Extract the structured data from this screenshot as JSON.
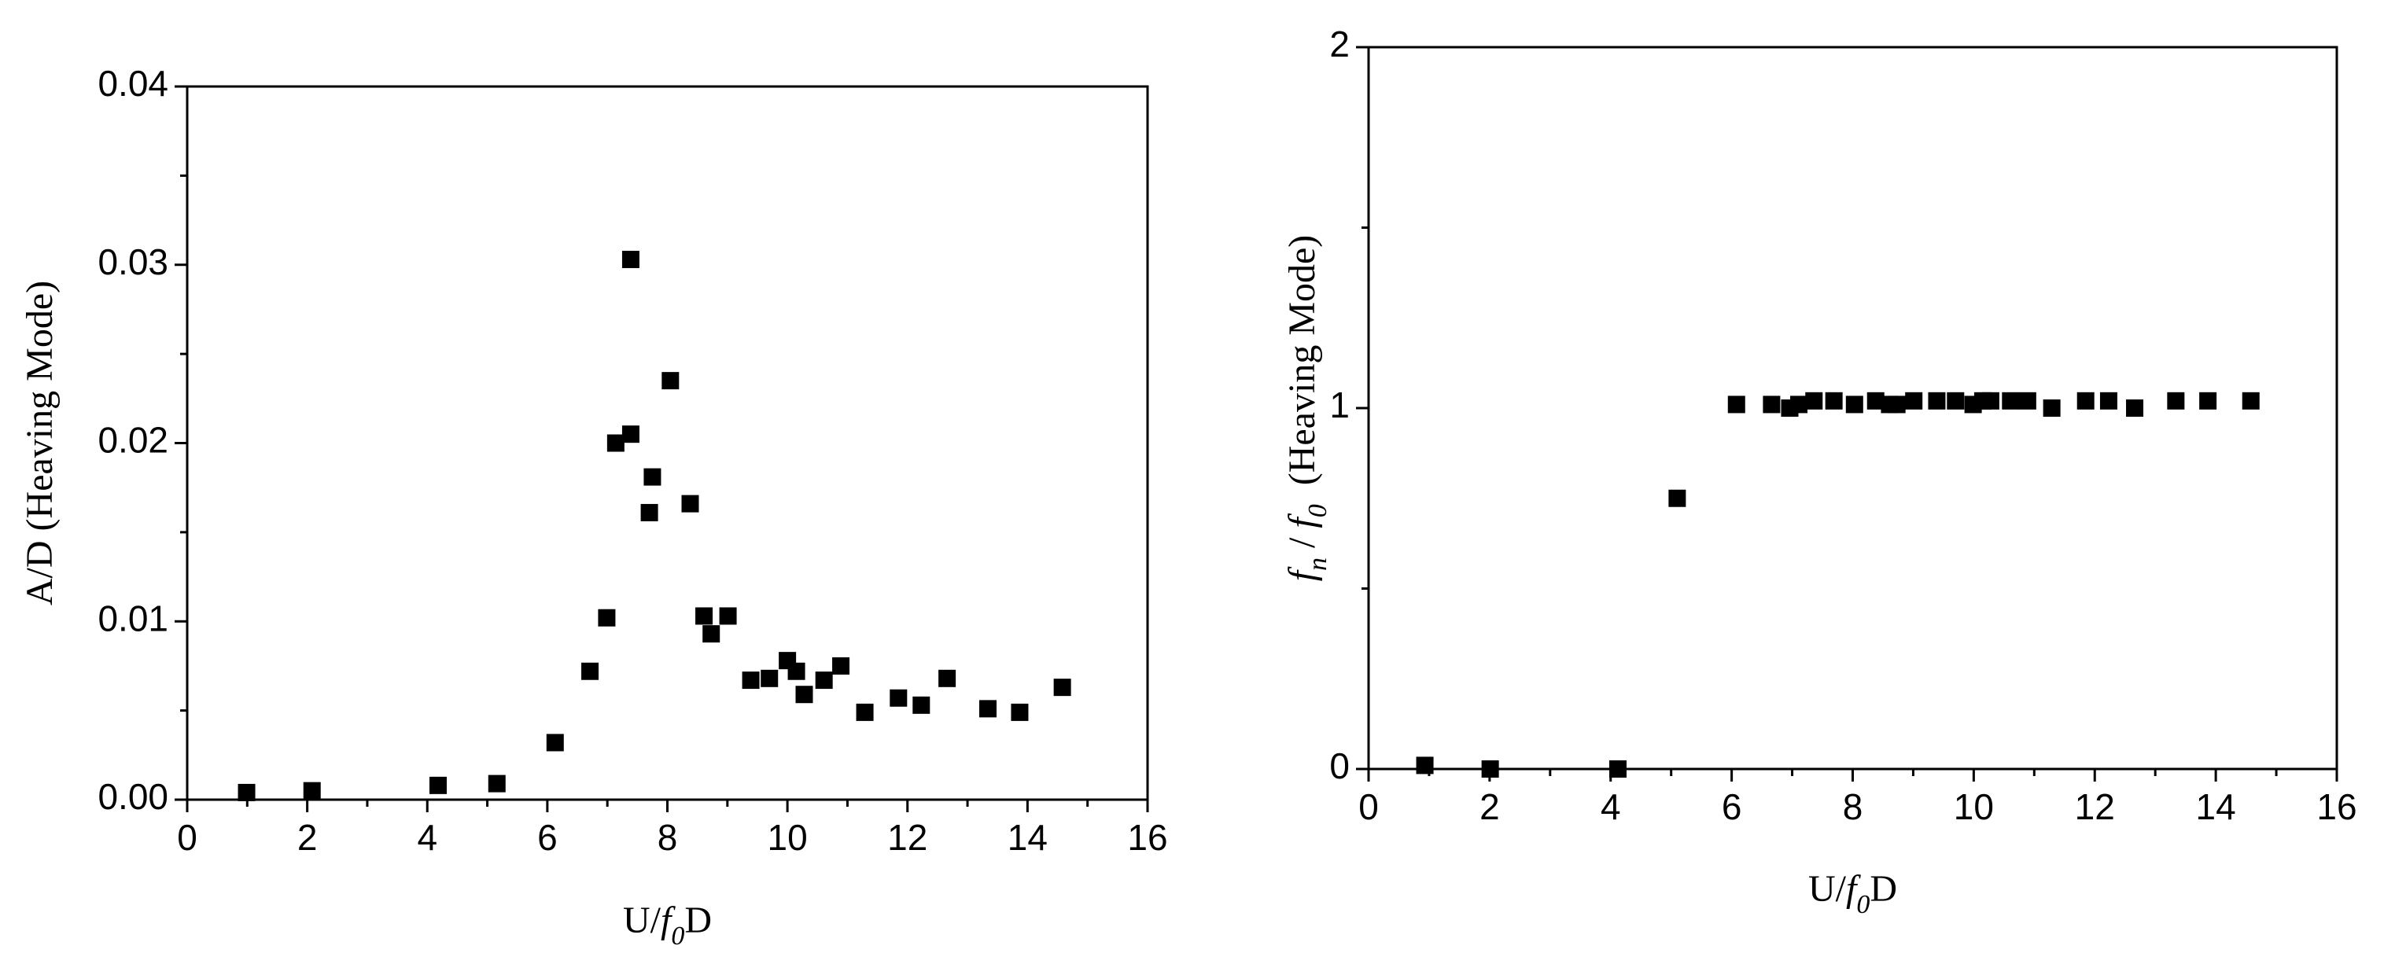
{
  "chart_data": [
    {
      "type": "scatter",
      "color": "#000000",
      "xlabel": [
        {
          "text": "U/",
          "style": "normal"
        },
        {
          "text": "f",
          "style": "italic"
        },
        {
          "text": "0",
          "style": "italic-sub"
        },
        {
          "text": "D",
          "style": "normal"
        }
      ],
      "ylabel": [
        {
          "text": "A/D (Heaving Mode)",
          "style": "normal"
        }
      ],
      "x": [
        0.99,
        2.08,
        4.18,
        5.16,
        6.13,
        6.71,
        6.99,
        7.14,
        7.39,
        7.39,
        7.7,
        7.75,
        8.05,
        8.38,
        8.61,
        8.73,
        9.01,
        9.39,
        9.7,
        10.0,
        10.15,
        10.28,
        10.61,
        10.89,
        11.29,
        11.85,
        12.23,
        12.66,
        13.34,
        13.87,
        14.58
      ],
      "values": [
        0.0004,
        0.0005,
        0.0008,
        0.0009,
        0.0032,
        0.0072,
        0.0102,
        0.02,
        0.0205,
        0.0303,
        0.0161,
        0.0181,
        0.0235,
        0.0166,
        0.0103,
        0.0093,
        0.0103,
        0.0067,
        0.0068,
        0.0078,
        0.0072,
        0.0059,
        0.0067,
        0.0075,
        0.0049,
        0.0057,
        0.0053,
        0.0068,
        0.0051,
        0.0049,
        0.0063
      ],
      "xlim": [
        0,
        16
      ],
      "ylim": [
        0,
        0.04
      ],
      "xticks": [
        0,
        2,
        4,
        6,
        8,
        10,
        12,
        14,
        16
      ],
      "yticks": [
        {
          "value": 0,
          "label": "0.00"
        },
        0.01,
        0.02,
        0.03,
        0.04
      ],
      "xminorticks": [
        1,
        3,
        5,
        7,
        9,
        11,
        13,
        15
      ],
      "yminorticks": [
        0.005,
        0.015,
        0.025,
        0.035
      ]
    },
    {
      "type": "scatter",
      "color": "#000000",
      "xlabel": [
        {
          "text": "U/",
          "style": "normal"
        },
        {
          "text": "f",
          "style": "italic"
        },
        {
          "text": "0",
          "style": "italic-sub"
        },
        {
          "text": "D",
          "style": "normal"
        }
      ],
      "ylabel": [
        {
          "text": "f",
          "style": "italic"
        },
        {
          "text": "n",
          "style": "italic-sub"
        },
        {
          "text": " / ",
          "style": "normal"
        },
        {
          "text": "f",
          "style": "italic"
        },
        {
          "text": "0",
          "style": "italic-sub"
        },
        {
          "text": "  (Heaving Mode)",
          "style": "normal"
        }
      ],
      "x": [
        0.93,
        2.01,
        4.12,
        5.1,
        6.08,
        6.66,
        6.96,
        7.11,
        7.36,
        7.69,
        8.03,
        8.38,
        8.61,
        8.73,
        9.01,
        9.39,
        9.7,
        9.99,
        10.15,
        10.28,
        10.61,
        10.89,
        11.29,
        11.85,
        12.23,
        12.66,
        13.34,
        13.87,
        14.58
      ],
      "values": [
        0.01,
        0,
        0,
        0.75,
        1.01,
        1.01,
        1.0,
        1.01,
        1.02,
        1.02,
        1.01,
        1.02,
        1.01,
        1.01,
        1.02,
        1.02,
        1.02,
        1.01,
        1.02,
        1.02,
        1.02,
        1.02,
        1.0,
        1.02,
        1.02,
        1.0,
        1.02,
        1.02,
        1.02
      ],
      "xlim": [
        0,
        16
      ],
      "ylim": [
        0,
        2
      ],
      "xticks": [
        0,
        2,
        4,
        6,
        8,
        10,
        12,
        14,
        16
      ],
      "yticks": [
        0,
        1,
        2
      ],
      "xminorticks": [
        1,
        3,
        5,
        7,
        9,
        11,
        13,
        15
      ],
      "yminorticks": [
        0.5,
        1.5
      ]
    }
  ]
}
